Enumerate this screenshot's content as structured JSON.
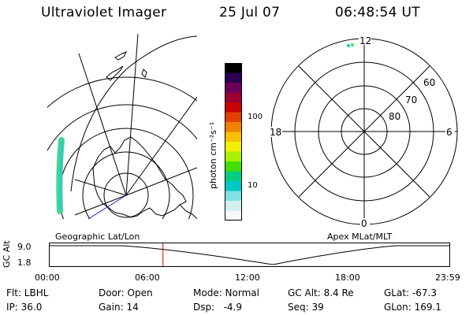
{
  "header": {
    "instrument": "Ultraviolet Imager",
    "date": "25 Jul 07",
    "time": "06:48:54 UT"
  },
  "geo_panel": {
    "label": "Geographic Lat/Lon"
  },
  "colorbar": {
    "unit_label": "photon cm⁻²s⁻¹",
    "tick_100": "100",
    "tick_10": "10",
    "colors": [
      "#000000",
      "#2a0050",
      "#6a0058",
      "#9a0030",
      "#c80000",
      "#e04000",
      "#f08000",
      "#f8c000",
      "#f0f000",
      "#a8f000",
      "#40e000",
      "#00d080",
      "#00c8c8",
      "#80e0e0",
      "#d0f0f0",
      "#f8f8f8"
    ]
  },
  "polar_panel": {
    "label": "Apex MLat/MLT",
    "mlt_12": "12",
    "mlt_6": "6",
    "mlt_0": "0",
    "mlt_18": "18",
    "lat_60": "60",
    "lat_70": "70",
    "lat_80": "80"
  },
  "altitude_plot": {
    "ylabel": "GC Alt",
    "y_hi": "9.0",
    "y_lo": "1.8",
    "x_ticks": [
      "00:00",
      "06:00",
      "12:00",
      "18:00",
      "23:59"
    ],
    "current_time_marker_hours": 6.815,
    "line_color": "#000000",
    "marker_color": "#cc0000"
  },
  "info": {
    "filt": "Flt: LBHL",
    "ip": "IP: 36.0",
    "door": "Door: Open",
    "gain": "Gain: 14",
    "mode": "Mode: Normal",
    "dsp": "Dsp:   -4.9",
    "gcalt": "GC Alt: 8.4 Re",
    "seq": "Seq: 39",
    "glat": "GLat: -67.3",
    "glon": "GLon: 169.1"
  }
}
